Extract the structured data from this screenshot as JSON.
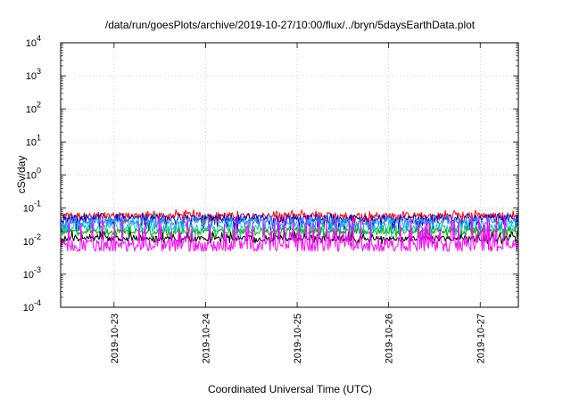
{
  "chart_data": {
    "type": "line",
    "title": "/data/run/goesPlots/archive/2019-10-27/10:00/flux/../bryn/5daysEarthData.plot",
    "xlabel": "Coordinated Universal Time (UTC)",
    "ylabel": "cSv/day",
    "yscale": "log",
    "ylim": [
      0.0001,
      10000
    ],
    "y_ticks": [
      {
        "value": 0.0001,
        "base": "10",
        "exp": "-4"
      },
      {
        "value": 0.001,
        "base": "10",
        "exp": "-3"
      },
      {
        "value": 0.01,
        "base": "10",
        "exp": "-2"
      },
      {
        "value": 0.1,
        "base": "10",
        "exp": "-1"
      },
      {
        "value": 1,
        "base": "10",
        "exp": "0"
      },
      {
        "value": 10,
        "base": "10",
        "exp": "1"
      },
      {
        "value": 100,
        "base": "10",
        "exp": "2"
      },
      {
        "value": 1000,
        "base": "10",
        "exp": "3"
      },
      {
        "value": 10000,
        "base": "10",
        "exp": "4"
      }
    ],
    "xlim": [
      "2019-10-22T10:00",
      "2019-10-27T10:00"
    ],
    "x_ticks": [
      "2019-10-23",
      "2019-10-24",
      "2019-10-25",
      "2019-10-26",
      "2019-10-27"
    ],
    "grid": true,
    "series": [
      {
        "color": "#ff0000",
        "values": {
          "low": 0.03,
          "high": 0.09,
          "typical": 0.06
        }
      },
      {
        "color": "#0000c8",
        "values": {
          "low": 0.02,
          "high": 0.07,
          "typical": 0.05
        }
      },
      {
        "color": "#00c8c8",
        "values": {
          "low": 0.012,
          "high": 0.05,
          "typical": 0.025
        }
      },
      {
        "color": "#00b400",
        "values": {
          "low": 0.012,
          "high": 0.03,
          "typical": 0.02
        }
      },
      {
        "color": "#000000",
        "values": {
          "low": 0.008,
          "high": 0.02,
          "typical": 0.012
        }
      },
      {
        "color": "#1e90ff",
        "values": {
          "low": 0.02,
          "high": 0.065,
          "typical": 0.04
        }
      },
      {
        "color": "#ff00ff",
        "values": {
          "low": 0.005,
          "high": 0.06,
          "typical": 0.007
        }
      }
    ]
  }
}
